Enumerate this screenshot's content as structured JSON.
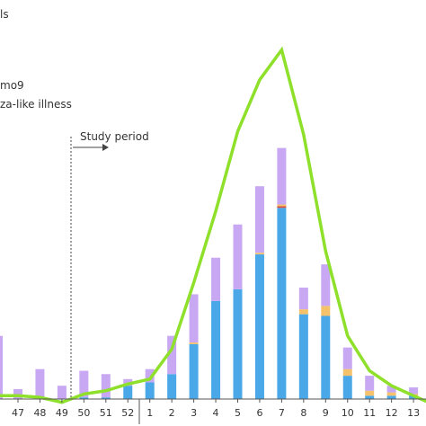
{
  "chart_data": {
    "type": "bar",
    "categories": [
      "47",
      "48",
      "49",
      "50",
      "51",
      "52",
      "1",
      "2",
      "3",
      "4",
      "5",
      "6",
      "7",
      "8",
      "9",
      "10",
      "11",
      "12",
      "13"
    ],
    "series": [
      {
        "name": "",
        "color": "#4aa8e8",
        "values": [
          0,
          0,
          0,
          1,
          1,
          8,
          10,
          15,
          33,
          59,
          66,
          87,
          115,
          51,
          50,
          14,
          2,
          2,
          2
        ]
      },
      {
        "name": "",
        "color": "#d94b3e",
        "values": [
          0,
          0,
          0,
          0,
          0,
          0,
          0,
          0,
          0,
          0,
          0,
          0,
          1,
          0,
          0,
          0,
          0,
          0,
          0
        ]
      },
      {
        "name": "",
        "color": "#f5c26b",
        "values": [
          0,
          0,
          0,
          0,
          0,
          0,
          0,
          0,
          1,
          0,
          0,
          1,
          1,
          3,
          6,
          4,
          3,
          2,
          1
        ]
      },
      {
        "name": "",
        "color": "#c8a8f2",
        "values": [
          6,
          18,
          8,
          16,
          14,
          4,
          8,
          23,
          29,
          26,
          39,
          40,
          34,
          13,
          25,
          13,
          9,
          4,
          4
        ]
      }
    ],
    "line": {
      "name": "",
      "color": "#8ee02b",
      "values": [
        2,
        1,
        -2,
        3,
        5,
        9,
        12,
        30,
        70,
        113,
        161,
        192,
        210,
        159,
        89,
        38,
        17,
        8,
        2
      ]
    },
    "partial_left_bar": {
      "purple_top": 38
    },
    "ylim": [
      -10,
      215
    ],
    "legend_fragments": [
      "ls",
      "mo9",
      "za-like illness"
    ],
    "annotation": "Study period",
    "grid": false
  }
}
